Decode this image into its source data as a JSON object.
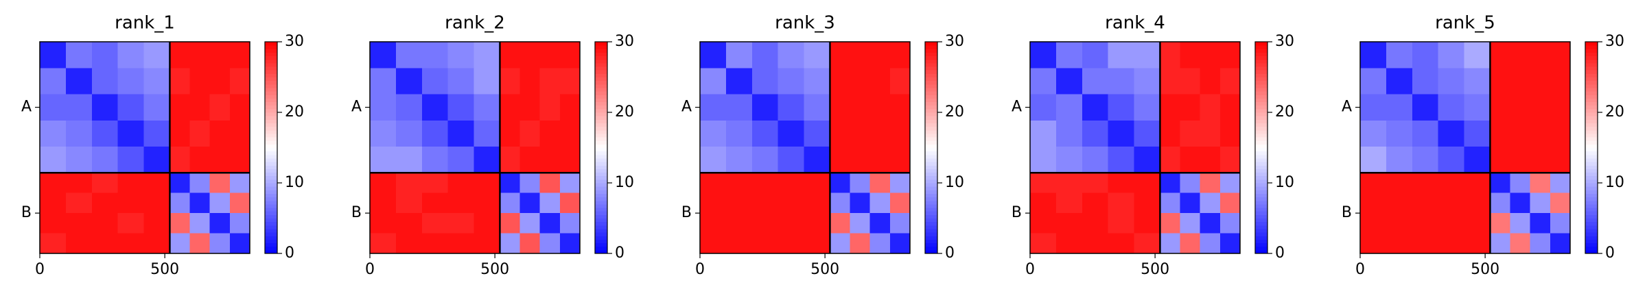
{
  "chart_data": [
    {
      "type": "heatmap",
      "title": "rank_1",
      "bins": [
        0,
        104,
        208,
        312,
        416,
        520,
        600,
        680,
        760,
        840
      ],
      "xlim": [
        0,
        840
      ],
      "ylim": [
        0,
        840
      ],
      "xticks": [
        0,
        500
      ],
      "yticks": [
        {
          "value": 260,
          "label": "A"
        },
        {
          "value": 680,
          "label": "B"
        }
      ],
      "chain_breaks": [
        520
      ],
      "colormap": [
        "#0000ff",
        "#ffffff",
        "#ff0000"
      ],
      "zlim": [
        0,
        30
      ],
      "zticks": [
        0,
        10,
        20,
        30
      ],
      "z": [
        [
          2,
          7,
          6,
          8,
          9,
          29,
          29,
          29,
          29
        ],
        [
          7,
          2,
          6,
          7,
          8,
          28,
          29,
          29,
          28
        ],
        [
          6,
          6,
          2,
          5,
          7,
          29,
          29,
          28,
          29
        ],
        [
          8,
          7,
          5,
          2,
          5,
          29,
          28,
          29,
          29
        ],
        [
          9,
          8,
          7,
          5,
          2,
          28,
          29,
          29,
          29
        ],
        [
          29,
          29,
          28,
          29,
          29,
          2,
          8,
          24,
          9
        ],
        [
          29,
          28,
          29,
          29,
          29,
          8,
          2,
          9,
          24
        ],
        [
          29,
          29,
          29,
          28,
          29,
          24,
          9,
          2,
          8
        ],
        [
          28,
          29,
          29,
          29,
          29,
          9,
          24,
          8,
          2
        ]
      ]
    },
    {
      "type": "heatmap",
      "title": "rank_2",
      "bins": [
        0,
        104,
        208,
        312,
        416,
        520,
        600,
        680,
        760,
        840
      ],
      "xlim": [
        0,
        840
      ],
      "ylim": [
        0,
        840
      ],
      "xticks": [
        0,
        500
      ],
      "yticks": [
        {
          "value": 260,
          "label": "A"
        },
        {
          "value": 680,
          "label": "B"
        }
      ],
      "chain_breaks": [
        520
      ],
      "colormap": [
        "#0000ff",
        "#ffffff",
        "#ff0000"
      ],
      "zlim": [
        0,
        30
      ],
      "zticks": [
        0,
        10,
        20,
        30
      ],
      "z": [
        [
          2,
          7,
          7,
          8,
          9,
          29,
          29,
          29,
          29
        ],
        [
          7,
          2,
          6,
          7,
          9,
          28,
          29,
          28,
          28
        ],
        [
          7,
          6,
          2,
          5,
          7,
          29,
          29,
          28,
          29
        ],
        [
          8,
          7,
          5,
          2,
          6,
          29,
          28,
          29,
          29
        ],
        [
          9,
          9,
          7,
          6,
          2,
          28,
          29,
          29,
          29
        ],
        [
          29,
          28,
          28,
          29,
          29,
          2,
          8,
          25,
          9
        ],
        [
          29,
          28,
          29,
          29,
          29,
          8,
          2,
          9,
          25
        ],
        [
          29,
          29,
          28,
          28,
          29,
          25,
          9,
          2,
          8
        ],
        [
          28,
          29,
          29,
          29,
          29,
          9,
          25,
          8,
          2
        ]
      ]
    },
    {
      "type": "heatmap",
      "title": "rank_3",
      "bins": [
        0,
        104,
        208,
        312,
        416,
        520,
        600,
        680,
        760,
        840
      ],
      "xlim": [
        0,
        840
      ],
      "ylim": [
        0,
        840
      ],
      "xticks": [
        0,
        500
      ],
      "yticks": [
        {
          "value": 260,
          "label": "A"
        },
        {
          "value": 680,
          "label": "B"
        }
      ],
      "chain_breaks": [
        520
      ],
      "colormap": [
        "#0000ff",
        "#ffffff",
        "#ff0000"
      ],
      "zlim": [
        0,
        30
      ],
      "zticks": [
        0,
        10,
        20,
        30
      ],
      "z": [
        [
          2,
          8,
          6,
          8,
          9,
          29,
          29,
          29,
          29
        ],
        [
          8,
          2,
          6,
          7,
          8,
          29,
          29,
          29,
          28
        ],
        [
          6,
          6,
          2,
          5,
          7,
          29,
          29,
          29,
          29
        ],
        [
          8,
          7,
          5,
          2,
          5,
          29,
          29,
          29,
          29
        ],
        [
          9,
          8,
          7,
          5,
          2,
          29,
          29,
          29,
          29
        ],
        [
          29,
          29,
          29,
          29,
          29,
          2,
          8,
          24,
          9
        ],
        [
          29,
          29,
          29,
          29,
          29,
          8,
          2,
          9,
          24
        ],
        [
          29,
          29,
          29,
          29,
          29,
          24,
          9,
          2,
          8
        ],
        [
          29,
          29,
          29,
          29,
          29,
          9,
          24,
          8,
          2
        ]
      ]
    },
    {
      "type": "heatmap",
      "title": "rank_4",
      "bins": [
        0,
        104,
        208,
        312,
        416,
        520,
        600,
        680,
        760,
        840
      ],
      "xlim": [
        0,
        840
      ],
      "ylim": [
        0,
        840
      ],
      "xticks": [
        0,
        500
      ],
      "yticks": [
        {
          "value": 260,
          "label": "A"
        },
        {
          "value": 680,
          "label": "B"
        }
      ],
      "chain_breaks": [
        520
      ],
      "colormap": [
        "#0000ff",
        "#ffffff",
        "#ff0000"
      ],
      "zlim": [
        0,
        30
      ],
      "zticks": [
        0,
        10,
        20,
        30
      ],
      "z": [
        [
          2,
          7,
          6,
          9,
          9,
          28,
          29,
          29,
          29
        ],
        [
          7,
          2,
          7,
          7,
          8,
          28,
          28,
          29,
          28
        ],
        [
          6,
          7,
          2,
          5,
          7,
          29,
          29,
          28,
          29
        ],
        [
          9,
          7,
          5,
          2,
          5,
          29,
          28,
          28,
          29
        ],
        [
          9,
          8,
          7,
          5,
          2,
          28,
          29,
          29,
          28
        ],
        [
          28,
          28,
          28,
          29,
          29,
          2,
          8,
          24,
          9
        ],
        [
          29,
          28,
          29,
          28,
          29,
          8,
          2,
          9,
          24
        ],
        [
          29,
          29,
          29,
          28,
          29,
          24,
          9,
          2,
          8
        ],
        [
          28,
          29,
          29,
          29,
          28,
          9,
          24,
          8,
          2
        ]
      ]
    },
    {
      "type": "heatmap",
      "title": "rank_5",
      "bins": [
        0,
        104,
        208,
        312,
        416,
        520,
        600,
        680,
        760,
        840
      ],
      "xlim": [
        0,
        840
      ],
      "ylim": [
        0,
        840
      ],
      "xticks": [
        0,
        500
      ],
      "yticks": [
        {
          "value": 260,
          "label": "A"
        },
        {
          "value": 680,
          "label": "B"
        }
      ],
      "chain_breaks": [
        520
      ],
      "colormap": [
        "#0000ff",
        "#ffffff",
        "#ff0000"
      ],
      "zlim": [
        0,
        30
      ],
      "zticks": [
        0,
        10,
        20,
        30
      ],
      "z": [
        [
          2,
          7,
          6,
          8,
          10,
          29,
          29,
          29,
          29
        ],
        [
          7,
          2,
          6,
          7,
          8,
          29,
          29,
          29,
          29
        ],
        [
          6,
          6,
          2,
          6,
          7,
          29,
          29,
          29,
          29
        ],
        [
          8,
          7,
          6,
          2,
          5,
          29,
          29,
          29,
          29
        ],
        [
          10,
          8,
          7,
          5,
          2,
          29,
          29,
          29,
          29
        ],
        [
          29,
          29,
          29,
          29,
          29,
          2,
          8,
          23,
          9
        ],
        [
          29,
          29,
          29,
          29,
          29,
          8,
          2,
          9,
          23
        ],
        [
          29,
          29,
          29,
          29,
          29,
          23,
          9,
          2,
          8
        ],
        [
          29,
          29,
          29,
          29,
          29,
          9,
          23,
          8,
          2
        ]
      ]
    }
  ]
}
